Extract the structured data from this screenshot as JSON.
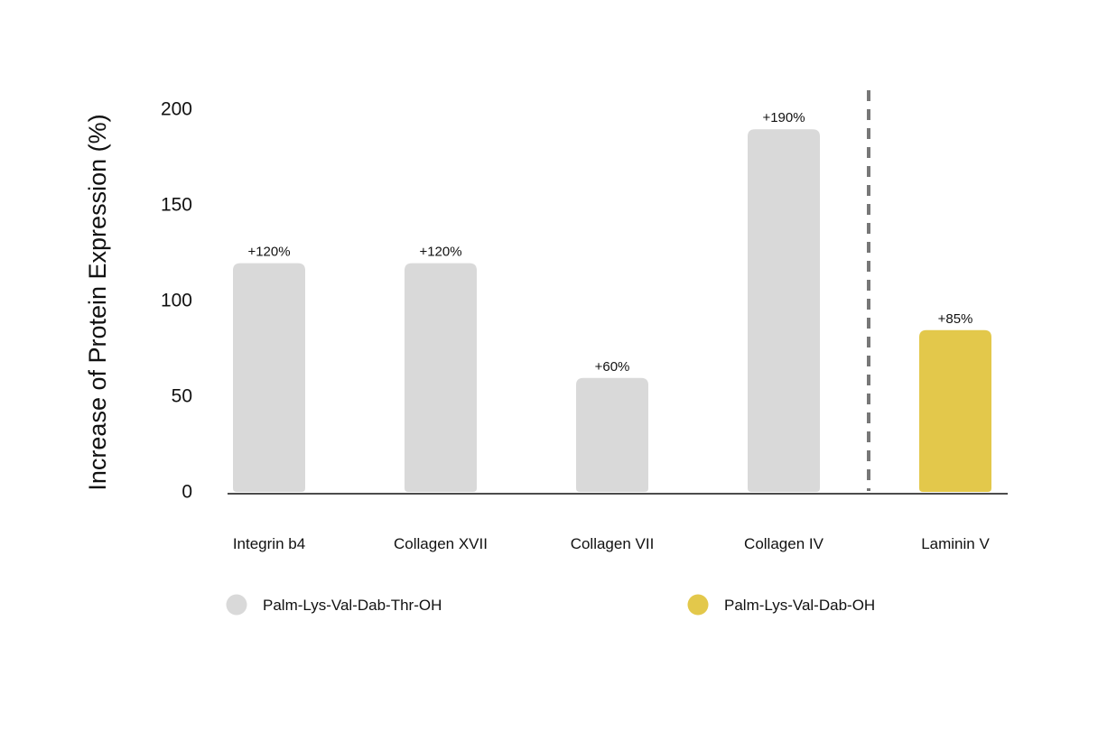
{
  "chart_data": {
    "type": "bar",
    "title": "",
    "xlabel": "",
    "ylabel": "Increase of Protein Expression (%)",
    "ylim": [
      0,
      200
    ],
    "yticks": [
      0,
      50,
      100,
      150,
      200
    ],
    "grid": false,
    "categories": [
      "Integrin b4",
      "Collagen XVII",
      "Collagen VII",
      "Collagen IV",
      "Laminin V"
    ],
    "series": [
      {
        "name": "Palm-Lys-Val-Dab-Thr-OH",
        "color": "#d9d9d9",
        "values": [
          120,
          120,
          60,
          190,
          null
        ]
      },
      {
        "name": "Palm-Lys-Val-Dab-OH",
        "color": "#e3c84b",
        "values": [
          null,
          null,
          null,
          null,
          85
        ]
      }
    ],
    "data_labels": [
      "+120%",
      "+120%",
      "+60%",
      "+190%",
      "+85%"
    ],
    "separator_after_category": "Collagen IV",
    "legend_position": "bottom"
  }
}
